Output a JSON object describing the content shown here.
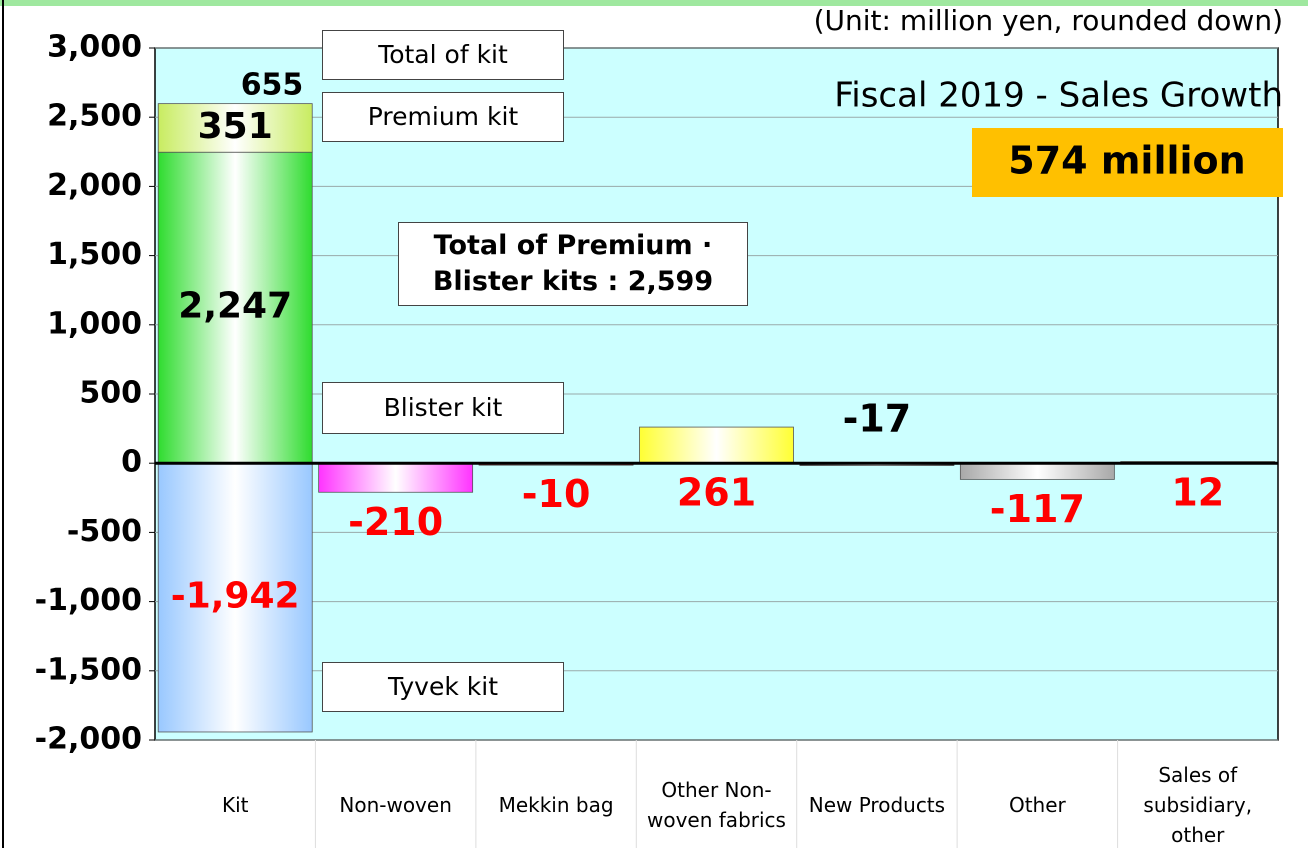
{
  "chart_data": {
    "type": "bar",
    "unit_note": "(Unit: million yen, rounded down)",
    "title": "Fiscal 2019 -  Sales Growth",
    "highlight": "574 million",
    "annotation": "Total of Premium ·\nBlister kits : 2,599",
    "kit_total": {
      "label": "Total of kit",
      "value": 655
    },
    "categories": [
      "Kit",
      "Non-woven",
      "Mekkin bag",
      "Other Non-woven fabrics",
      "New Products",
      "Other",
      "Sales of subsidiary, other"
    ],
    "series": [
      {
        "name": "Premium kit",
        "color": "#2fdc2f",
        "label_color": "#000000",
        "values": [
          2247,
          null,
          null,
          null,
          null,
          null,
          null
        ],
        "value_labels": [
          "2,247",
          null,
          null,
          null,
          null,
          null,
          null
        ]
      },
      {
        "name": "Blister kit",
        "color": "#c8ec60",
        "label_color": "#000000",
        "values": [
          351,
          null,
          null,
          null,
          null,
          null,
          null
        ]
      },
      {
        "name": "Tyvek kit",
        "color": "#99c8ff",
        "label_color": "#ff0000",
        "values": [
          -1942,
          null,
          null,
          null,
          null,
          null,
          null
        ],
        "value_labels": [
          "-1,942",
          null,
          null,
          null,
          null,
          null,
          null
        ]
      },
      {
        "colors": [
          null,
          "#ff33ff",
          "#ff3333",
          "#ffff33",
          "#333333",
          "#a8a8a8",
          "#ff9900"
        ],
        "label_colors": [
          null,
          "#ff0000",
          "#ff0000",
          "#ff0000",
          "#000000",
          "#ff0000",
          "#ff0000"
        ],
        "values": [
          null,
          -210,
          -10,
          261,
          -17,
          -117,
          12
        ]
      }
    ],
    "ylim": [
      -2000,
      3000
    ],
    "yticks": [
      {
        "value": -2000,
        "label": "-2,000"
      },
      {
        "value": -1500,
        "label": "-1,500"
      },
      {
        "value": -1000,
        "label": "-1,000"
      },
      -500,
      0,
      500,
      {
        "value": 1000,
        "label": "1,000"
      },
      {
        "value": 1500,
        "label": "1,500"
      },
      {
        "value": 2000,
        "label": "2,000"
      },
      {
        "value": 2500,
        "label": "2,500"
      },
      {
        "value": 3000,
        "label": "3,000"
      }
    ],
    "grid": true
  }
}
